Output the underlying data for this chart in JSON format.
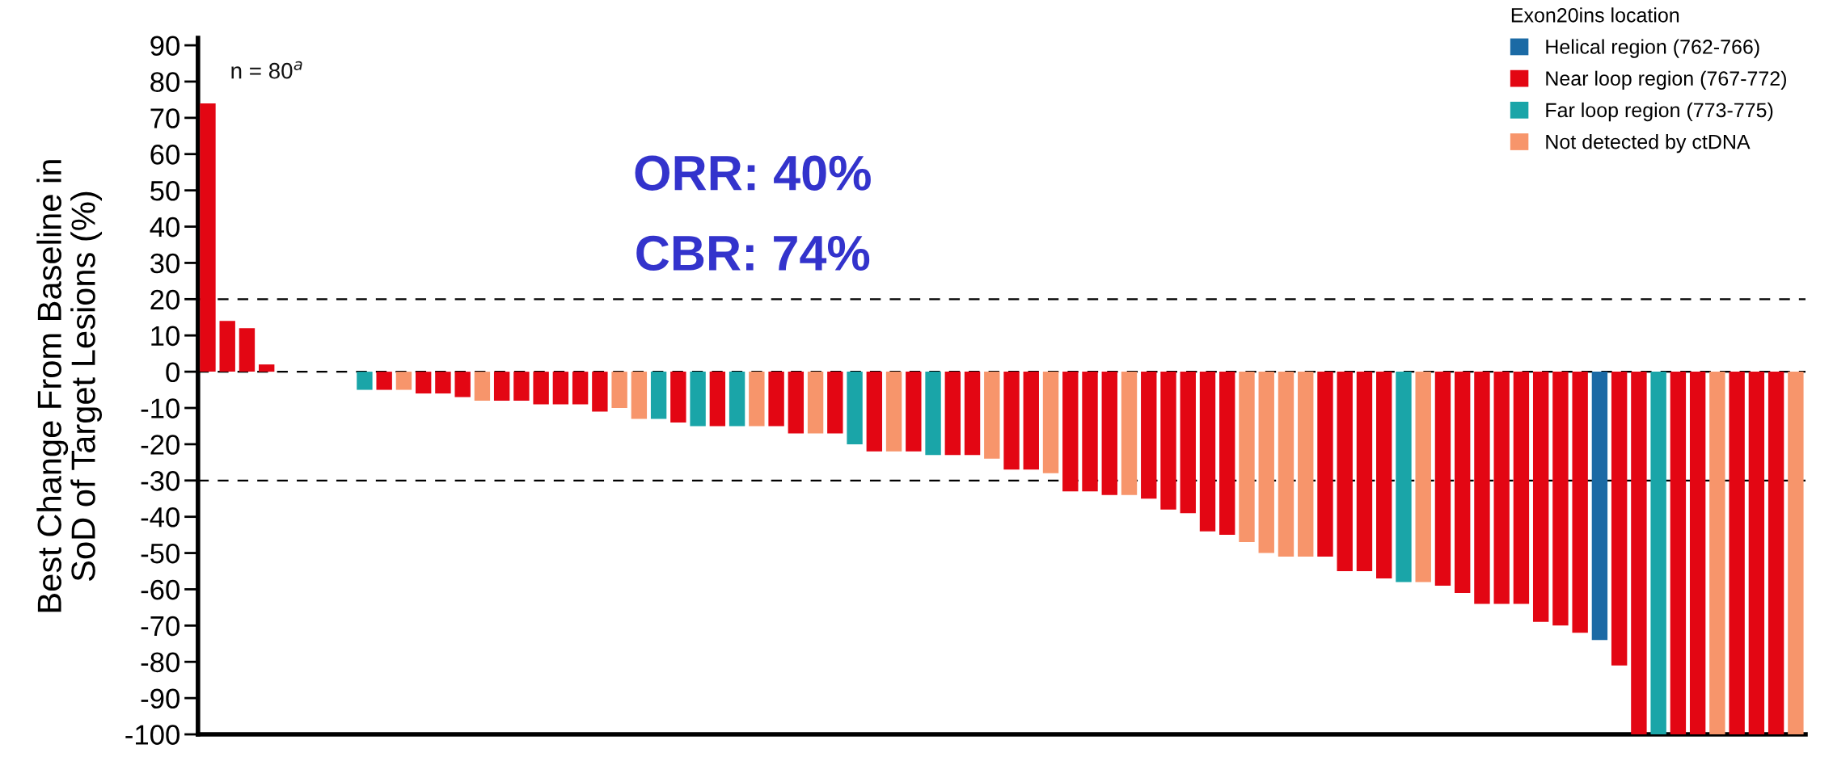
{
  "chart_data": {
    "type": "bar",
    "ylabel": "Best Change From Baseline in\nSoD of Target Lesions (%)",
    "legend_title": "Exon20ins location",
    "categories": [
      null,
      null,
      null,
      null,
      null,
      null,
      null,
      null,
      null,
      null,
      null,
      null,
      null,
      null,
      null,
      null,
      null,
      null,
      null,
      null,
      null,
      null,
      null,
      null,
      null,
      null,
      null,
      null,
      null,
      null,
      null,
      null,
      null,
      null,
      null,
      null,
      null,
      null,
      null,
      null,
      null,
      null,
      null,
      null,
      null,
      null,
      null,
      null,
      null,
      null,
      null,
      null,
      null,
      null,
      null,
      null,
      null,
      null,
      null,
      null,
      null,
      null,
      null,
      null,
      null,
      null,
      null,
      null,
      null,
      null,
      null,
      null,
      null,
      null,
      null,
      null,
      null,
      null,
      null,
      null,
      null,
      null
    ],
    "series": [
      {
        "name": "Helical region (762-766)",
        "color": "#1b6aa5",
        "values": [
          null,
          null,
          null,
          null,
          null,
          null,
          null,
          null,
          null,
          null,
          null,
          null,
          null,
          null,
          null,
          null,
          null,
          null,
          null,
          null,
          null,
          null,
          null,
          null,
          null,
          null,
          null,
          null,
          null,
          null,
          null,
          null,
          null,
          null,
          null,
          null,
          null,
          null,
          null,
          null,
          null,
          null,
          null,
          null,
          null,
          null,
          null,
          null,
          null,
          null,
          null,
          null,
          null,
          null,
          null,
          null,
          null,
          null,
          null,
          null,
          null,
          null,
          null,
          null,
          null,
          null,
          null,
          null,
          null,
          null,
          null,
          -74,
          null,
          null,
          null,
          null,
          null,
          null,
          null,
          null,
          null,
          null
        ]
      },
      {
        "name": "Near loop region (767-772)",
        "color": "#e30613",
        "values": [
          74,
          14,
          12,
          2,
          null,
          null,
          null,
          null,
          null,
          -5,
          null,
          -6,
          -6,
          -7,
          null,
          -8,
          -8,
          -9,
          -9,
          -9,
          -11,
          null,
          null,
          null,
          -14,
          null,
          -15,
          null,
          null,
          -15,
          -17,
          null,
          -17,
          null,
          -22,
          null,
          -22,
          null,
          -23,
          -23,
          null,
          -27,
          -27,
          null,
          -33,
          -33,
          -34,
          null,
          -35,
          -38,
          -39,
          -44,
          -45,
          null,
          null,
          null,
          null,
          -51,
          -55,
          -55,
          -57,
          null,
          null,
          -59,
          -61,
          -64,
          -64,
          -64,
          -69,
          -70,
          -72,
          null,
          -81,
          -100,
          null,
          -100,
          -100,
          null,
          -100,
          -100,
          -100,
          null
        ]
      },
      {
        "name": "Far loop region (773-775)",
        "color": "#1aa5a8",
        "values": [
          null,
          null,
          null,
          null,
          null,
          null,
          null,
          null,
          -5,
          null,
          null,
          null,
          null,
          null,
          null,
          null,
          null,
          null,
          null,
          null,
          null,
          null,
          null,
          -13,
          null,
          -15,
          null,
          -15,
          null,
          null,
          null,
          null,
          null,
          -20,
          null,
          null,
          null,
          -23,
          null,
          null,
          null,
          null,
          null,
          null,
          null,
          null,
          null,
          null,
          null,
          null,
          null,
          null,
          null,
          null,
          null,
          null,
          null,
          null,
          null,
          null,
          null,
          -58,
          null,
          null,
          null,
          null,
          null,
          null,
          null,
          null,
          null,
          null,
          null,
          null,
          -100,
          null,
          null,
          null,
          null,
          null,
          null,
          null
        ]
      },
      {
        "name": "Not detected by ctDNA",
        "color": "#f7956b",
        "values": [
          null,
          null,
          null,
          null,
          null,
          null,
          null,
          null,
          null,
          null,
          -5,
          null,
          null,
          null,
          -8,
          null,
          null,
          null,
          null,
          null,
          null,
          -10,
          -13,
          null,
          null,
          null,
          null,
          null,
          -15,
          null,
          null,
          -17,
          null,
          null,
          null,
          -22,
          null,
          null,
          null,
          null,
          -24,
          null,
          null,
          -28,
          null,
          null,
          null,
          -34,
          null,
          null,
          null,
          null,
          null,
          -47,
          -50,
          -51,
          -51,
          null,
          null,
          null,
          null,
          null,
          -58,
          null,
          null,
          null,
          null,
          null,
          null,
          null,
          null,
          null,
          null,
          null,
          null,
          null,
          null,
          -100,
          null,
          null,
          null,
          -100
        ]
      }
    ],
    "ylim": [
      -100,
      92
    ],
    "yticks": [
      -100,
      -90,
      -80,
      -70,
      -60,
      -50,
      -40,
      -30,
      -20,
      -10,
      0,
      10,
      20,
      30,
      40,
      50,
      60,
      70,
      80,
      90
    ],
    "ref_lines": [
      {
        "axis": "y",
        "value": 20,
        "label": null,
        "color": "#000000",
        "line_style": "dashed"
      },
      {
        "axis": "y",
        "value": 0,
        "label": null,
        "color": "#000000",
        "line_style": "dashed"
      },
      {
        "axis": "y",
        "value": -30,
        "label": null,
        "color": "#000000",
        "line_style": "dashed"
      }
    ],
    "annotations": [
      "n = 80$^{a}$",
      "ORR: 40%",
      "CBR: 74%"
    ],
    "tick_labels": "y",
    "grid": false,
    "legend": "top right"
  }
}
